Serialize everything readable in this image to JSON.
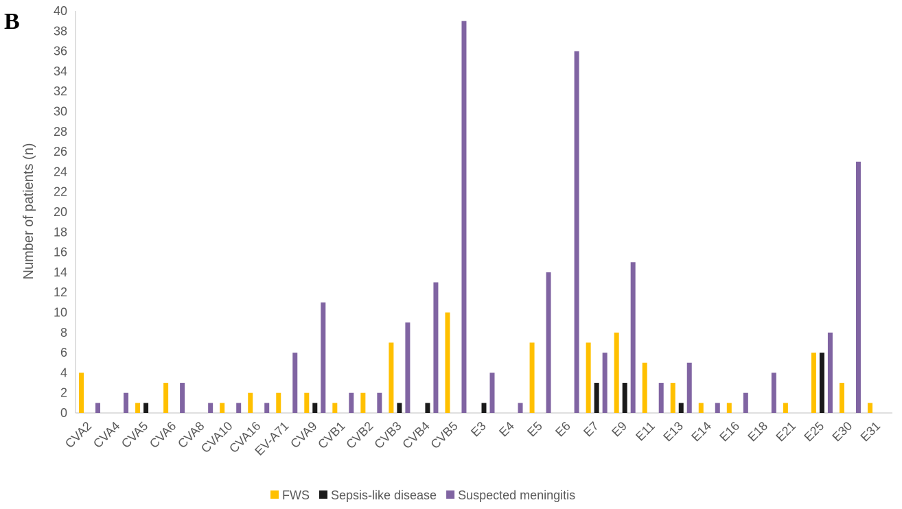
{
  "panel_letter": "B",
  "chart_data": {
    "type": "bar",
    "title": "",
    "xlabel": "",
    "ylabel": "Number of patients (n)",
    "ylim": [
      0,
      40
    ],
    "ytick_step": 2,
    "grid": false,
    "legend_position": "bottom",
    "categories": [
      "CVA2",
      "CVA4",
      "CVA5",
      "CVA6",
      "CVA8",
      "CVA10",
      "CVA16",
      "EV-A71",
      "CVA9",
      "CVB1",
      "CVB2",
      "CVB3",
      "CVB4",
      "CVB5",
      "E3",
      "E4",
      "E5",
      "E6",
      "E7",
      "E9",
      "E11",
      "E13",
      "E14",
      "E16",
      "E18",
      "E21",
      "E25",
      "E30",
      "E31"
    ],
    "series": [
      {
        "name": "FWS",
        "color": "#FFC000",
        "values": [
          4,
          0,
          1,
          3,
          0,
          1,
          2,
          2,
          2,
          1,
          2,
          7,
          0,
          10,
          0,
          0,
          7,
          0,
          7,
          8,
          5,
          3,
          1,
          1,
          0,
          1,
          6,
          3,
          1
        ]
      },
      {
        "name": "Sepsis-like disease",
        "color": "#1A1A1A",
        "values": [
          0,
          0,
          1,
          0,
          0,
          0,
          0,
          0,
          1,
          0,
          0,
          1,
          1,
          0,
          1,
          0,
          0,
          0,
          3,
          3,
          0,
          1,
          0,
          0,
          0,
          0,
          6,
          0,
          0
        ]
      },
      {
        "name": "Suspected meningitis",
        "color": "#8064A2",
        "values": [
          1,
          2,
          0,
          3,
          1,
          1,
          1,
          6,
          11,
          2,
          2,
          9,
          13,
          39,
          4,
          1,
          14,
          36,
          6,
          15,
          3,
          5,
          1,
          2,
          4,
          0,
          8,
          25,
          0
        ]
      }
    ]
  }
}
